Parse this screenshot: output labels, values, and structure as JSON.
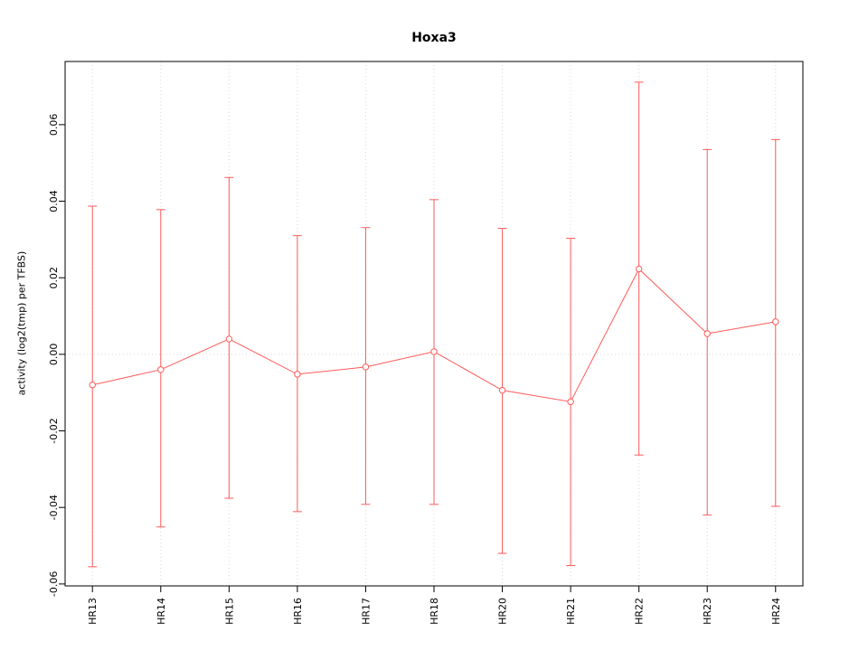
{
  "chart_data": {
    "type": "line",
    "title": "Hoxa3",
    "xlabel": "",
    "ylabel": "activity (log2(tmp) per TFBS)",
    "categories": [
      "HR13",
      "HR14",
      "HR15",
      "HR16",
      "HR17",
      "HR18",
      "HR20",
      "HR21",
      "HR22",
      "HR23",
      "HR24"
    ],
    "series": [
      {
        "name": "activity",
        "values": [
          -0.008,
          -0.004,
          0.004,
          -0.0052,
          -0.0033,
          0.0007,
          -0.0094,
          -0.0124,
          0.0223,
          0.0054,
          0.0085
        ],
        "upper": [
          0.0387,
          0.0378,
          0.0462,
          0.031,
          0.0331,
          0.0404,
          0.0329,
          0.0303,
          0.0711,
          0.0535,
          0.0561
        ],
        "lower": [
          -0.0555,
          -0.0451,
          -0.0376,
          -0.0411,
          -0.0392,
          -0.0392,
          -0.052,
          -0.0552,
          -0.0263,
          -0.042,
          -0.0397
        ]
      }
    ],
    "yticks": [
      -0.06,
      -0.04,
      -0.02,
      0,
      0.02,
      0.04,
      0.06
    ],
    "ylim": [
      -0.0605,
      0.0765
    ],
    "grid": {
      "vertical": "dotted line at each category",
      "horizontal": "dotted line at y=0",
      "color": "#d8d8d8"
    },
    "legend": "none",
    "colors": {
      "series": "#ff5a5a",
      "axis": "#000000",
      "background": "#ffffff"
    }
  }
}
